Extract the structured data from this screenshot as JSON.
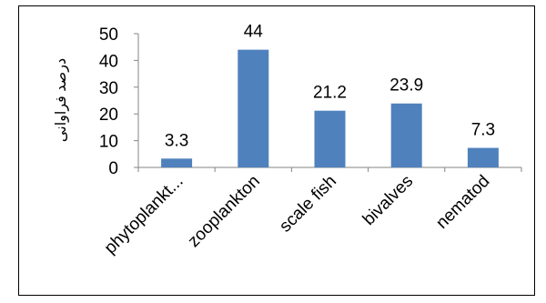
{
  "chart_data": {
    "type": "bar",
    "categories": [
      "phytoplankt...",
      "zooplankton",
      "scale fish",
      "bivalves",
      "nematod"
    ],
    "values": [
      3.3,
      44,
      21.2,
      23.9,
      7.3
    ],
    "data_labels": [
      "3.3",
      "44",
      "21.2",
      "23.9",
      "7.3"
    ],
    "title": "",
    "xlabel": "",
    "ylabel": "درصد فراوانی",
    "ylim": [
      0,
      50
    ],
    "yticks": [
      0,
      10,
      20,
      30,
      40,
      50
    ],
    "grid": false,
    "legend": "none",
    "bar_color": "#4f81bd"
  }
}
